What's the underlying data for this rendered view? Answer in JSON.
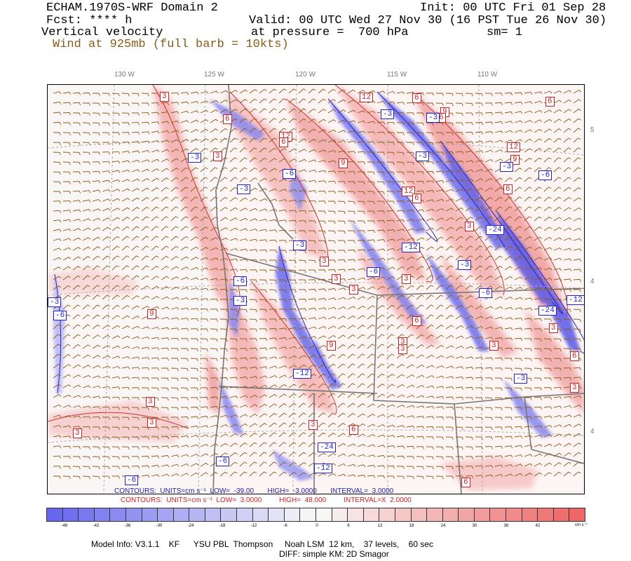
{
  "header": {
    "model_title": "ECHAM.1970S-WRF Domain 2",
    "init": "Init: 00 UTC Fri 01 Sep 28",
    "fcst": "Fcst: **** h",
    "valid": "Valid: 00 UTC Wed 27 Nov 30 (16 PST Tue 26 Nov 30)",
    "field": "Vertical velocity",
    "pressure": "at pressure =  700 hPa",
    "smoothing": "sm= 1",
    "wind": "Wind at 925mb (full barb = 10kts)"
  },
  "longitude_labels": [
    "130 W",
    "125 W",
    "120 W",
    "115 W",
    "110 W"
  ],
  "latitude_labels": [
    "5",
    "4",
    "4"
  ],
  "contour_info": {
    "neg": "CONTOURS:  UNITS=cm s⁻¹  LOW=  -39.00       HIGH=  -3.0000       INTERVAL=  3.0000",
    "pos": "CONTOURS:  UNITS=cm s⁻¹  LOW=  3.0000         HIGH=  48.000         INTERVAL=X  2.0000"
  },
  "colorbar": {
    "labels": [
      "-48",
      "-42",
      "-36",
      "-30",
      "-24",
      "-18",
      "-12",
      "-6",
      "0",
      "6",
      "12",
      "18",
      "24",
      "30",
      "36",
      "42"
    ],
    "units": "cm s⁻¹",
    "neg_color": "#6666ee",
    "pos_color": "#ee6666"
  },
  "contour_labels_red": [
    "3",
    "6",
    "12",
    "3",
    "6",
    "12",
    "6",
    "9",
    "6",
    "6",
    "12",
    "9",
    "12",
    "6",
    "3",
    "6",
    "9",
    "3",
    "3",
    "3",
    "3",
    "6",
    "9",
    "3",
    "3",
    "3",
    "9",
    "3",
    "3",
    "3",
    "3",
    "6",
    "6",
    "3",
    "3",
    "6"
  ],
  "contour_labels_blue": [
    "-3",
    "-6",
    "-3",
    "-6",
    "-3",
    "-12",
    "-24",
    "-6",
    "-24",
    "-12",
    "-3",
    "-6",
    "-3",
    "-3",
    "-3",
    "-6",
    "-3",
    "-3",
    "-6",
    "-3",
    "-12",
    "-6",
    "-24",
    "-12",
    "-3",
    "-6"
  ],
  "footer": {
    "model_info": "Model Info: V3.1.1    KF      YSU PBL  Thompson     Noah LSM  12 km,    37 levels,    60 sec",
    "diff": "DIFF: simple KM: 2D Smagor"
  }
}
